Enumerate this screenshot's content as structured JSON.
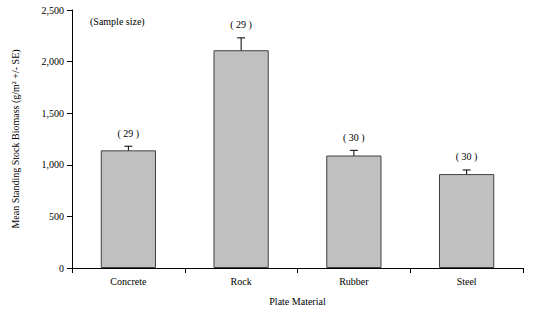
{
  "chart_data": {
    "type": "bar",
    "x_label": "Plate Material",
    "y_label": "Mean Standing Stock Biomass (g/m² +/- SE)",
    "annotation": "(Sample size)",
    "categories": [
      "Concrete",
      "Rock",
      "Rubber",
      "Steel"
    ],
    "values": [
      1140,
      2110,
      1090,
      910
    ],
    "errors": [
      40,
      120,
      50,
      40
    ],
    "sample_size_labels": [
      "( 29 )",
      "( 29 )",
      "( 30 )",
      "( 30 )"
    ],
    "color": "#c0c0c0",
    "ylim": [
      0,
      2500
    ],
    "yticks": [
      0,
      500,
      {
        "value": 1000,
        "label": "1,000"
      },
      {
        "value": 1500,
        "label": "1,500"
      },
      {
        "value": 2000,
        "label": "2,000"
      },
      {
        "value": 2500,
        "label": "2,500"
      }
    ],
    "grid": false
  }
}
